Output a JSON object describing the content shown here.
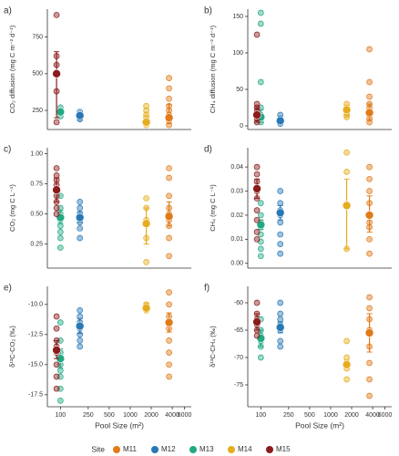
{
  "legend_title": "Site",
  "chart_data": [
    {
      "type": "dotplot",
      "title": "a)",
      "ylabel": "CO₂ diffusion (mg C m⁻² d⁻¹)",
      "xscale": "log",
      "xlim": [
        65,
        7500
      ],
      "ylim": [
        120,
        940
      ],
      "yticks": [
        250,
        500,
        750
      ],
      "series": [
        {
          "name": "M11",
          "color": "#e07b1a",
          "x": 3600,
          "values": [
            470,
            400,
            330,
            280,
            250,
            220,
            180,
            150
          ],
          "mean": 200,
          "ci": [
            160,
            290
          ]
        },
        {
          "name": "M12",
          "color": "#2878b5",
          "x": 190,
          "values": [
            240,
            220,
            200,
            190
          ],
          "mean": 215,
          "ci": [
            200,
            230
          ]
        },
        {
          "name": "M13",
          "color": "#23a884",
          "x": 100,
          "values": [
            270,
            250,
            230,
            210
          ],
          "mean": 240,
          "ci": [
            225,
            260
          ]
        },
        {
          "name": "M14",
          "color": "#e6ac1f",
          "x": 1700,
          "values": [
            280,
            250,
            220,
            200,
            180,
            160,
            150
          ],
          "mean": 170,
          "ci": [
            160,
            185
          ]
        },
        {
          "name": "M15",
          "color": "#8b1c1c",
          "x": 88,
          "values": [
            900,
            620,
            560,
            380,
            170
          ],
          "mean": 500,
          "ci": [
            200,
            650
          ]
        }
      ]
    },
    {
      "type": "dotplot",
      "title": "b)",
      "ylabel": "CH₄ diffusion (mg C m⁻² d⁻¹)",
      "xscale": "log",
      "xlim": [
        65,
        7500
      ],
      "ylim": [
        -5,
        160
      ],
      "yticks": [
        0,
        50,
        100,
        150
      ],
      "series": [
        {
          "name": "M11",
          "color": "#e07b1a",
          "x": 3600,
          "values": [
            105,
            60,
            40,
            30,
            25,
            20,
            15,
            10,
            5
          ],
          "mean": 18,
          "ci": [
            8,
            30
          ]
        },
        {
          "name": "M12",
          "color": "#2878b5",
          "x": 190,
          "values": [
            15,
            10,
            8,
            5,
            3
          ],
          "mean": 7,
          "ci": [
            4,
            10
          ]
        },
        {
          "name": "M13",
          "color": "#23a884",
          "x": 100,
          "values": [
            155,
            140,
            60,
            25,
            15,
            10,
            5
          ],
          "mean": 12,
          "ci": [
            5,
            22
          ]
        },
        {
          "name": "M14",
          "color": "#e6ac1f",
          "x": 1700,
          "values": [
            30,
            25,
            22,
            20,
            18,
            15,
            12
          ],
          "mean": 22,
          "ci": [
            15,
            28
          ]
        },
        {
          "name": "M15",
          "color": "#8b1c1c",
          "x": 88,
          "values": [
            125,
            30,
            25,
            20,
            15,
            10,
            5
          ],
          "mean": 15,
          "ci": [
            5,
            25
          ]
        }
      ]
    },
    {
      "type": "dotplot",
      "title": "c)",
      "ylabel": "CO₂ (mg C L⁻¹)",
      "xscale": "log",
      "xlim": [
        65,
        7500
      ],
      "ylim": [
        0.05,
        1.05
      ],
      "yticks": [
        {
          "value": 0.25,
          "label": "0.25"
        },
        {
          "value": 0.5,
          "label": "0.50"
        },
        {
          "value": 0.75,
          "label": "0.75"
        },
        {
          "value": 1,
          "label": "1.00"
        }
      ],
      "series": [
        {
          "name": "M11",
          "color": "#e07b1a",
          "x": 3600,
          "values": [
            0.88,
            0.8,
            0.65,
            0.55,
            0.5,
            0.45,
            0.4,
            0.3,
            0.15
          ],
          "mean": 0.48,
          "ci": [
            0.4,
            0.6
          ]
        },
        {
          "name": "M12",
          "color": "#2878b5",
          "x": 190,
          "values": [
            0.6,
            0.55,
            0.5,
            0.47,
            0.43,
            0.38,
            0.3
          ],
          "mean": 0.47,
          "ci": [
            0.43,
            0.52
          ]
        },
        {
          "name": "M13",
          "color": "#23a884",
          "x": 100,
          "values": [
            0.65,
            0.55,
            0.5,
            0.45,
            0.4,
            0.35,
            0.3,
            0.22
          ],
          "mean": 0.47,
          "ci": [
            0.42,
            0.53
          ]
        },
        {
          "name": "M14",
          "color": "#e6ac1f",
          "x": 1700,
          "values": [
            0.63,
            0.55,
            0.45,
            0.3,
            0.1
          ],
          "mean": 0.42,
          "ci": [
            0.25,
            0.55
          ]
        },
        {
          "name": "M15",
          "color": "#8b1c1c",
          "x": 88,
          "values": [
            0.88,
            0.82,
            0.78,
            0.74,
            0.65,
            0.6,
            0.55,
            0.5
          ],
          "mean": 0.7,
          "ci": [
            0.6,
            0.8
          ]
        }
      ]
    },
    {
      "type": "dotplot",
      "title": "d)",
      "ylabel": "CH₄ (mg C L⁻¹)",
      "xscale": "log",
      "xlim": [
        65,
        7500
      ],
      "ylim": [
        -0.002,
        0.048
      ],
      "yticks": [
        {
          "value": 0,
          "label": "0.00"
        },
        0.01,
        0.02,
        0.03,
        0.04
      ],
      "series": [
        {
          "name": "M11",
          "color": "#e07b1a",
          "x": 3600,
          "values": [
            0.04,
            0.035,
            0.03,
            0.025,
            0.02,
            0.017,
            0.015,
            0.01,
            0.004
          ],
          "mean": 0.02,
          "ci": [
            0.013,
            0.028
          ]
        },
        {
          "name": "M12",
          "color": "#2878b5",
          "x": 190,
          "values": [
            0.03,
            0.025,
            0.022,
            0.02,
            0.017,
            0.012,
            0.008,
            0.004
          ],
          "mean": 0.021,
          "ci": [
            0.018,
            0.024
          ]
        },
        {
          "name": "M13",
          "color": "#23a884",
          "x": 100,
          "values": [
            0.025,
            0.02,
            0.017,
            0.015,
            0.012,
            0.009,
            0.006,
            0.003
          ],
          "mean": 0.016,
          "ci": [
            0.014,
            0.018
          ]
        },
        {
          "name": "M14",
          "color": "#e6ac1f",
          "x": 1700,
          "values": [
            0.046,
            0.038,
            0.024,
            0.006
          ],
          "mean": 0.024,
          "ci": [
            0.006,
            0.035
          ]
        },
        {
          "name": "M15",
          "color": "#8b1c1c",
          "x": 88,
          "values": [
            0.04,
            0.037,
            0.034,
            0.03,
            0.027,
            0.022,
            0.018,
            0.013,
            0.01
          ],
          "mean": 0.031,
          "ci": [
            0.027,
            0.035
          ]
        }
      ]
    },
    {
      "type": "dotplot",
      "title": "e)",
      "ylabel": "δ¹³C-CO₂ (‰)",
      "xlabel": "Pool Size (m²)",
      "xscale": "log",
      "xlim": [
        65,
        7500
      ],
      "ylim": [
        -18.5,
        -8.5
      ],
      "xticks": [
        100,
        250,
        500,
        1000,
        2000,
        4000,
        6000
      ],
      "yticks": [
        {
          "value": -10,
          "label": "-10.0"
        },
        -12.5,
        {
          "value": -15,
          "label": "-15.0"
        },
        -17.5
      ],
      "series": [
        {
          "name": "M11",
          "color": "#e07b1a",
          "x": 3600,
          "values": [
            -9,
            -10,
            -11,
            -11.5,
            -12,
            -13,
            -14,
            -15,
            -16
          ],
          "mean": -11.5,
          "ci": [
            -12.3,
            -10.7
          ]
        },
        {
          "name": "M12",
          "color": "#2878b5",
          "x": 190,
          "values": [
            -10.5,
            -11,
            -11.5,
            -12,
            -12.5,
            -13,
            -13.5
          ],
          "mean": -11.8,
          "ci": [
            -12.4,
            -11.2
          ]
        },
        {
          "name": "M13",
          "color": "#23a884",
          "x": 100,
          "values": [
            -11.5,
            -13,
            -14,
            -15,
            -15.5,
            -16,
            -17,
            -18
          ],
          "mean": -14.5,
          "ci": [
            -15.3,
            -13.7
          ]
        },
        {
          "name": "M14",
          "color": "#e6ac1f",
          "x": 1700,
          "values": [
            -10,
            -10.1,
            -10.3,
            -10.5
          ],
          "mean": -10.3,
          "ci": [
            -10.5,
            -10.1
          ]
        },
        {
          "name": "M15",
          "color": "#8b1c1c",
          "x": 88,
          "values": [
            -11,
            -12,
            -13,
            -13.5,
            -14,
            -15,
            -16,
            -17
          ],
          "mean": -13.8,
          "ci": [
            -14.5,
            -13
          ]
        }
      ]
    },
    {
      "type": "dotplot",
      "title": "f)",
      "ylabel": "δ¹³C-CH₄ (‰)",
      "xlabel": "Pool Size (m²)",
      "xscale": "log",
      "xlim": [
        65,
        7500
      ],
      "ylim": [
        -79,
        -57
      ],
      "xticks": [
        100,
        250,
        500,
        1000,
        2000,
        4000,
        6000
      ],
      "yticks": [
        -60,
        -65,
        -70,
        -75
      ],
      "series": [
        {
          "name": "M11",
          "color": "#e07b1a",
          "x": 3600,
          "values": [
            -59,
            -61,
            -63,
            -65,
            -68,
            -71,
            -74,
            -77
          ],
          "mean": -65.5,
          "ci": [
            -69,
            -62
          ]
        },
        {
          "name": "M12",
          "color": "#2878b5",
          "x": 190,
          "values": [
            -60,
            -62,
            -63,
            -64,
            -65,
            -67,
            -68
          ],
          "mean": -64.5,
          "ci": [
            -65.5,
            -63.5
          ]
        },
        {
          "name": "M13",
          "color": "#23a884",
          "x": 100,
          "values": [
            -63,
            -65,
            -66,
            -67,
            -68,
            -70
          ],
          "mean": -66.5,
          "ci": [
            -68,
            -65
          ]
        },
        {
          "name": "M14",
          "color": "#e6ac1f",
          "x": 1700,
          "values": [
            -67,
            -70,
            -72,
            -74
          ],
          "mean": -71.3,
          "ci": [
            -72,
            -70.5
          ]
        },
        {
          "name": "M15",
          "color": "#8b1c1c",
          "x": 88,
          "values": [
            -60,
            -62,
            -63,
            -64,
            -65,
            -66
          ],
          "mean": -63.5,
          "ci": [
            -65,
            -62
          ]
        }
      ]
    }
  ]
}
